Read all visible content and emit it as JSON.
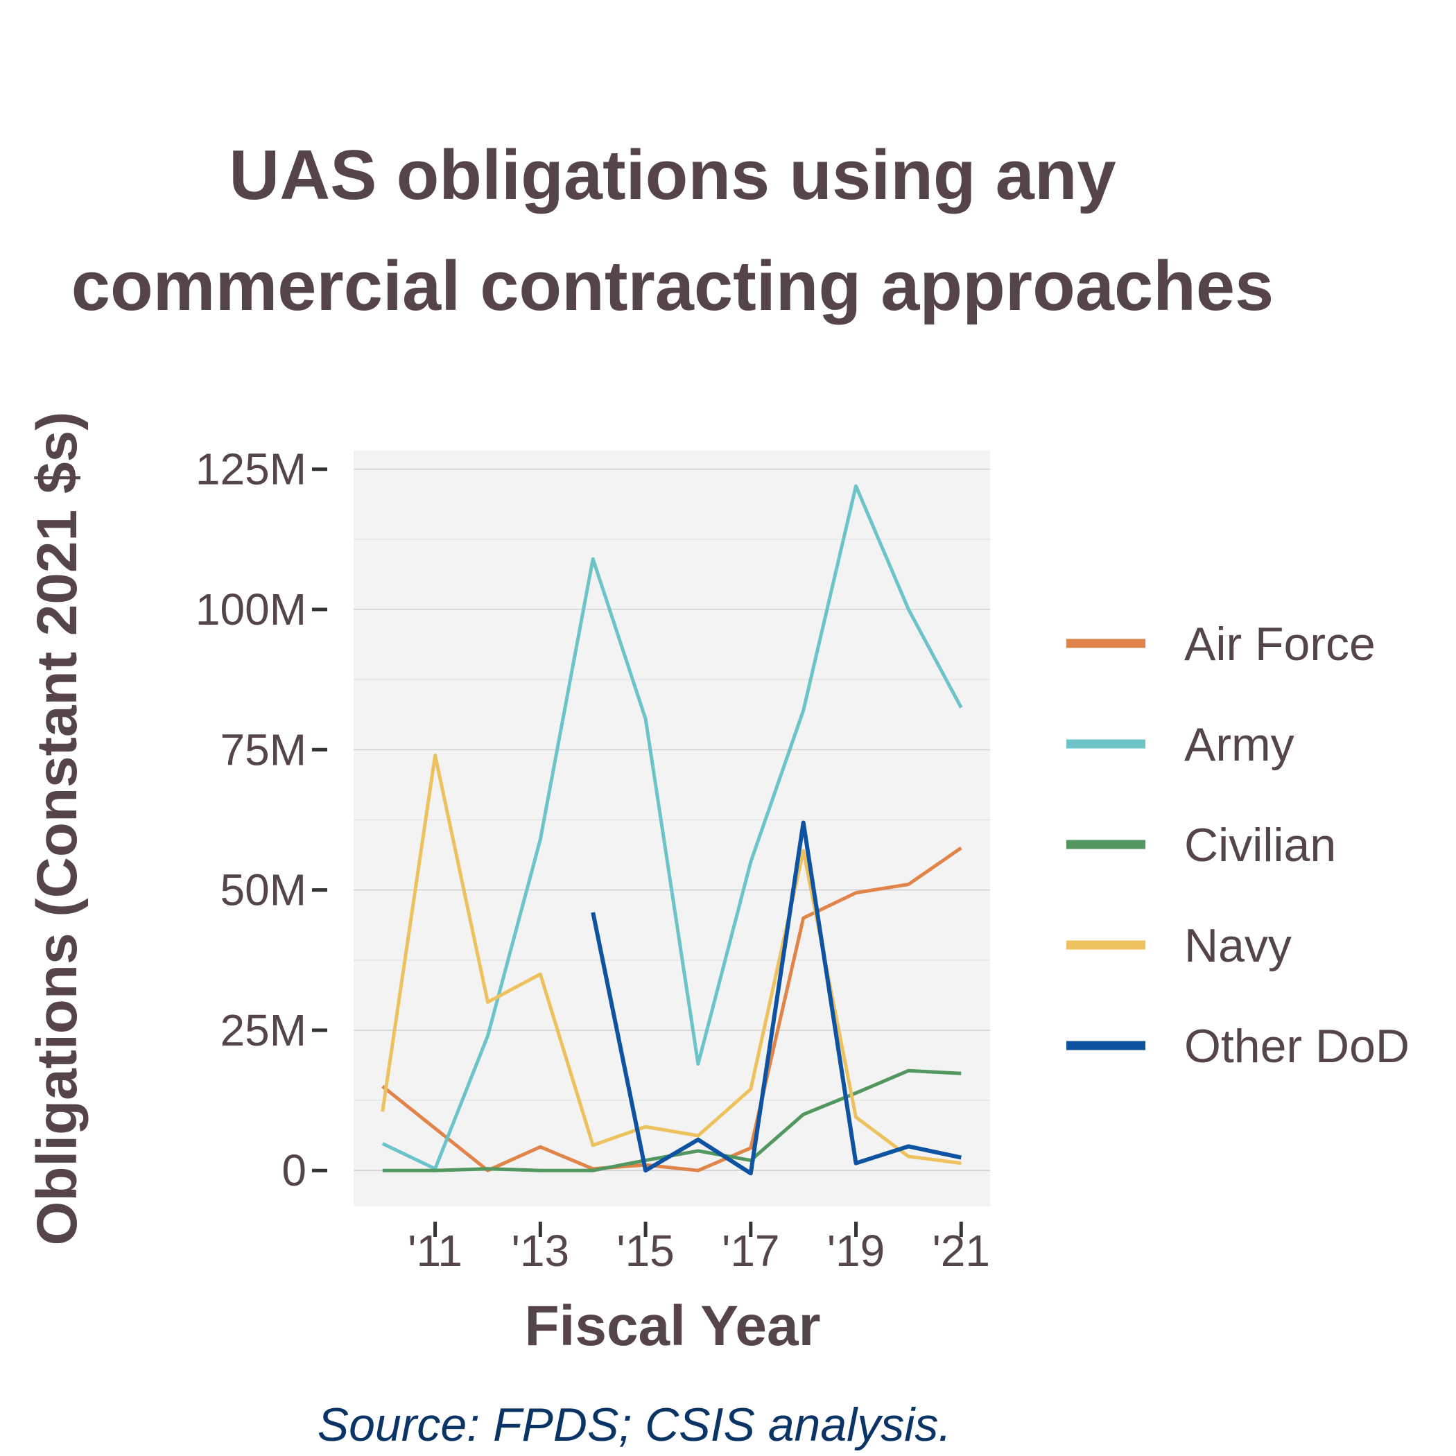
{
  "chart_data": {
    "type": "line",
    "title_lines": [
      "UAS obligations using any",
      "commercial contracting approaches"
    ],
    "xlabel": "Fiscal Year",
    "ylabel": "Obligations (Constant 2021 $s)",
    "caption": "Source: FPDS; CSIS analysis.",
    "x": [
      2010,
      2011,
      2012,
      2013,
      2014,
      2015,
      2016,
      2017,
      2018,
      2019,
      2020,
      2021
    ],
    "x_ticks": [
      {
        "value": 2011,
        "label": "'11"
      },
      {
        "value": 2013,
        "label": "'13"
      },
      {
        "value": 2015,
        "label": "'15"
      },
      {
        "value": 2017,
        "label": "'17"
      },
      {
        "value": 2019,
        "label": "'19"
      },
      {
        "value": 2021,
        "label": "'21"
      }
    ],
    "y_ticks": [
      {
        "value": 0,
        "label": "0"
      },
      {
        "value": 25,
        "label": "25M"
      },
      {
        "value": 50,
        "label": "50M"
      },
      {
        "value": 75,
        "label": "75M"
      },
      {
        "value": 100,
        "label": "100M"
      },
      {
        "value": 125,
        "label": "125M"
      }
    ],
    "xlim": [
      2009.45,
      2021.55
    ],
    "ylim": [
      -6.4,
      128.3
    ],
    "y_units": "millions of constant 2021 dollars",
    "grid": true,
    "legend_position": "right",
    "series": [
      {
        "name": "Air Force",
        "color": "#E0844A",
        "values": [
          15.0,
          7.5,
          0.0,
          4.2,
          0.3,
          1.0,
          0.0,
          4.0,
          45.0,
          49.5,
          51.0,
          57.5
        ]
      },
      {
        "name": "Army",
        "color": "#6CC4C8",
        "values": [
          4.8,
          0.3,
          24.0,
          59.0,
          109.0,
          80.5,
          19.0,
          55.0,
          82.0,
          122.0,
          100.0,
          82.5
        ]
      },
      {
        "name": "Civilian",
        "color": "#51975F",
        "values": [
          0.0,
          0.0,
          0.3,
          0.0,
          0.0,
          1.8,
          3.5,
          1.8,
          10.0,
          13.8,
          17.8,
          17.3
        ]
      },
      {
        "name": "Navy",
        "color": "#EDC15E",
        "values": [
          10.5,
          74.0,
          30.0,
          35.0,
          4.5,
          7.8,
          6.2,
          14.5,
          57.0,
          9.5,
          2.5,
          1.3
        ]
      },
      {
        "name": "Other DoD",
        "color": "#0E53A1",
        "values": [
          null,
          null,
          null,
          null,
          46.0,
          0.0,
          5.5,
          -0.5,
          62.0,
          1.3,
          4.3,
          2.3
        ]
      }
    ]
  }
}
